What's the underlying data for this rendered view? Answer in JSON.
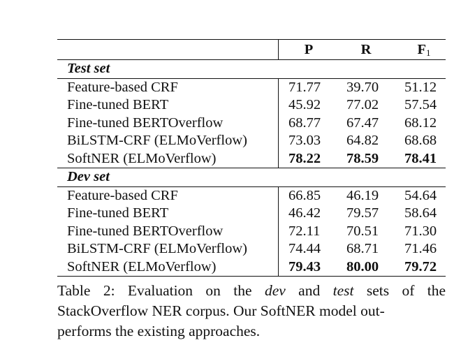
{
  "table": {
    "headers": {
      "p": "P",
      "r": "R",
      "f": "F",
      "f_sub": "1"
    },
    "sections": [
      {
        "title": "Test set",
        "rows": [
          {
            "name": "Feature-based CRF",
            "p": "71.77",
            "r": "39.70",
            "f": "51.12",
            "bold": false
          },
          {
            "name": "Fine-tuned BERT",
            "p": "45.92",
            "r": "77.02",
            "f": "57.54",
            "bold": false
          },
          {
            "name": "Fine-tuned BERTOverflow",
            "p": "68.77",
            "r": "67.47",
            "f": "68.12",
            "bold": false
          },
          {
            "name": "BiLSTM-CRF (ELMoVerflow)",
            "p": "73.03",
            "r": "64.82",
            "f": "68.68",
            "bold": false
          },
          {
            "name": "SoftNER (ELMoVerflow)",
            "p": "78.22",
            "r": "78.59",
            "f": "78.41",
            "bold": true
          }
        ]
      },
      {
        "title": "Dev set",
        "rows": [
          {
            "name": "Feature-based CRF",
            "p": "66.85",
            "r": "46.19",
            "f": "54.64",
            "bold": false
          },
          {
            "name": "Fine-tuned BERT",
            "p": "46.42",
            "r": "79.57",
            "f": "58.64",
            "bold": false
          },
          {
            "name": "Fine-tuned BERTOverflow",
            "p": "72.11",
            "r": "70.51",
            "f": "71.30",
            "bold": false
          },
          {
            "name": "BiLSTM-CRF (ELMoVerflow)",
            "p": "74.44",
            "r": "68.71",
            "f": "71.46",
            "bold": false
          },
          {
            "name": "SoftNER (ELMoVerflow)",
            "p": "79.43",
            "r": "80.00",
            "f": "79.72",
            "bold": true
          }
        ]
      }
    ]
  },
  "caption": {
    "label": "Table 2:",
    "part1": "Evaluation on the",
    "dev": "dev",
    "part2": "and",
    "test": "test",
    "part3": "sets of the",
    "line2": "StackOverflow NER corpus. Our SoftNER model out-",
    "line3": "performs the existing approaches."
  }
}
